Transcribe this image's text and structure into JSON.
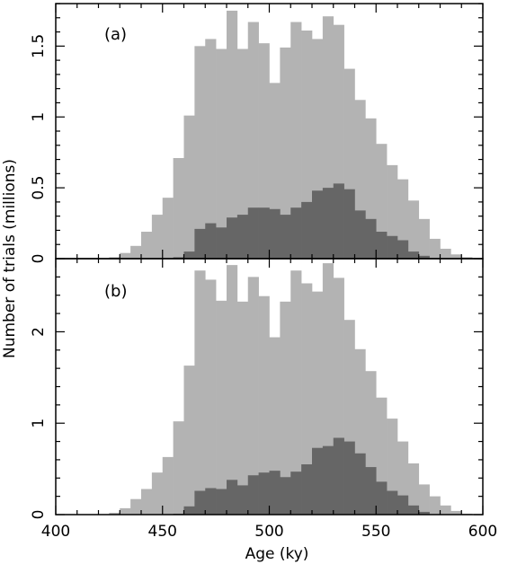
{
  "chart_data": {
    "type": "bar",
    "xlabel": "Age (ky)",
    "ylabel": "Number of trials (millions)",
    "xlim": [
      400,
      600
    ],
    "bin_width": 5,
    "x_ticks": [
      "400",
      "450",
      "500",
      "550",
      "600"
    ],
    "colors": {
      "light": "#b3b3b3",
      "dark": "#666666"
    },
    "panels": [
      {
        "label": "(a)",
        "ylim": [
          0,
          1.8
        ],
        "y_ticks": [
          "0",
          "0.5",
          "1",
          "1.5"
        ],
        "x": [
          425,
          430,
          435,
          440,
          445,
          450,
          455,
          460,
          465,
          470,
          475,
          480,
          485,
          490,
          495,
          500,
          505,
          510,
          515,
          520,
          525,
          530,
          535,
          540,
          545,
          550,
          555,
          560,
          565,
          570,
          575,
          580,
          585,
          590,
          595
        ],
        "series": [
          {
            "values": [
              0.01,
              0.04,
              0.09,
              0.19,
              0.31,
              0.43,
              0.71,
              1.01,
              1.5,
              1.55,
              1.48,
              1.75,
              1.48,
              1.67,
              1.52,
              1.24,
              1.49,
              1.67,
              1.61,
              1.55,
              1.71,
              1.65,
              1.34,
              1.12,
              0.99,
              0.81,
              0.66,
              0.56,
              0.41,
              0.28,
              0.14,
              0.07,
              0.03,
              0.01,
              0
            ]
          },
          {
            "values": [
              0,
              0,
              0,
              0,
              0,
              0,
              0.01,
              0.05,
              0.21,
              0.25,
              0.22,
              0.29,
              0.31,
              0.36,
              0.36,
              0.35,
              0.31,
              0.36,
              0.4,
              0.48,
              0.5,
              0.53,
              0.49,
              0.34,
              0.28,
              0.19,
              0.16,
              0.13,
              0.05,
              0.02,
              0,
              0,
              0,
              0,
              0
            ]
          }
        ]
      },
      {
        "label": "(b)",
        "ylim": [
          0,
          2.8
        ],
        "y_ticks": [
          "0",
          "1",
          "2"
        ],
        "x": [
          425,
          430,
          435,
          440,
          445,
          450,
          455,
          460,
          465,
          470,
          475,
          480,
          485,
          490,
          495,
          500,
          505,
          510,
          515,
          520,
          525,
          530,
          535,
          540,
          545,
          550,
          555,
          560,
          565,
          570,
          575,
          580,
          585,
          590,
          595
        ],
        "series": [
          {
            "values": [
              0.02,
              0.07,
              0.17,
              0.28,
              0.46,
              0.63,
              1.02,
              1.63,
              2.67,
              2.57,
              2.34,
              2.73,
              2.33,
              2.6,
              2.39,
              1.94,
              2.33,
              2.67,
              2.53,
              2.44,
              2.75,
              2.59,
              2.13,
              1.81,
              1.57,
              1.28,
              1.05,
              0.8,
              0.56,
              0.33,
              0.2,
              0.1,
              0.04,
              0.01,
              0
            ]
          },
          {
            "values": [
              0,
              0,
              0,
              0,
              0,
              0,
              0.01,
              0.09,
              0.26,
              0.29,
              0.28,
              0.38,
              0.32,
              0.43,
              0.46,
              0.48,
              0.41,
              0.47,
              0.55,
              0.73,
              0.75,
              0.84,
              0.8,
              0.67,
              0.52,
              0.36,
              0.26,
              0.21,
              0.1,
              0.03,
              0,
              0,
              0,
              0,
              0
            ]
          }
        ]
      }
    ]
  }
}
